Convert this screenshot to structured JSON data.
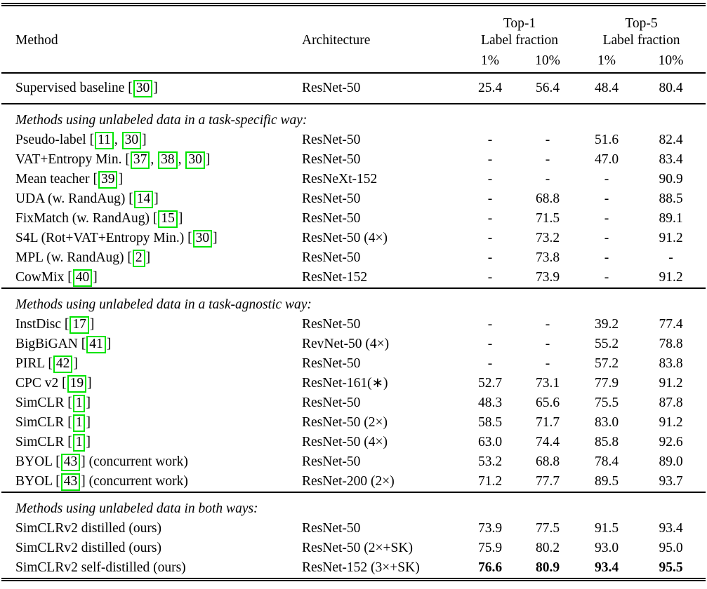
{
  "colors": {
    "citation_box_border": "#00E400",
    "text": "#000000",
    "background": "#FFFFFF"
  },
  "table": {
    "header": {
      "method": "Method",
      "architecture": "Architecture",
      "top1": "Top-1",
      "top5": "Top-5",
      "label_fraction": "Label fraction",
      "pct1": "1%",
      "pct10": "10%"
    },
    "sections": [
      {
        "title": null,
        "rows": [
          {
            "method": "Supervised baseline",
            "citations": [
              "30"
            ],
            "suffix": "",
            "architecture": "ResNet-50",
            "values": [
              "25.4",
              "56.4",
              "48.4",
              "80.4"
            ],
            "bold": false
          }
        ]
      },
      {
        "title": "Methods using unlabeled data in a task-specific way:",
        "rows": [
          {
            "method": "Pseudo-label",
            "citations": [
              "11",
              "30"
            ],
            "suffix": "",
            "architecture": "ResNet-50",
            "values": [
              "-",
              "-",
              "51.6",
              "82.4"
            ],
            "bold": false
          },
          {
            "method": "VAT+Entropy Min.",
            "citations": [
              "37",
              "38",
              "30"
            ],
            "suffix": "",
            "architecture": "ResNet-50",
            "values": [
              "-",
              "-",
              "47.0",
              "83.4"
            ],
            "bold": false
          },
          {
            "method": "Mean teacher",
            "citations": [
              "39"
            ],
            "suffix": "",
            "architecture": "ResNeXt-152",
            "values": [
              "-",
              "-",
              "-",
              "90.9"
            ],
            "bold": false
          },
          {
            "method": "UDA (w. RandAug)",
            "citations": [
              "14"
            ],
            "suffix": "",
            "architecture": "ResNet-50",
            "values": [
              "-",
              "68.8",
              "-",
              "88.5"
            ],
            "bold": false
          },
          {
            "method": "FixMatch (w. RandAug)",
            "citations": [
              "15"
            ],
            "suffix": "",
            "architecture": "ResNet-50",
            "values": [
              "-",
              "71.5",
              "-",
              "89.1"
            ],
            "bold": false
          },
          {
            "method": "S4L (Rot+VAT+Entropy Min.)",
            "citations": [
              "30"
            ],
            "suffix": "",
            "architecture": "ResNet-50 (4×)",
            "values": [
              "-",
              "73.2",
              "-",
              "91.2"
            ],
            "bold": false
          },
          {
            "method": "MPL (w. RandAug)",
            "citations": [
              "2"
            ],
            "suffix": "",
            "architecture": "ResNet-50",
            "values": [
              "-",
              "73.8",
              "-",
              "-"
            ],
            "bold": false
          },
          {
            "method": "CowMix",
            "citations": [
              "40"
            ],
            "suffix": "",
            "architecture": "ResNet-152",
            "values": [
              "-",
              "73.9",
              "-",
              "91.2"
            ],
            "bold": false
          }
        ]
      },
      {
        "title": "Methods using unlabeled data in a task-agnostic way:",
        "rows": [
          {
            "method": "InstDisc",
            "citations": [
              "17"
            ],
            "suffix": "",
            "architecture": "ResNet-50",
            "values": [
              "-",
              "-",
              "39.2",
              "77.4"
            ],
            "bold": false
          },
          {
            "method": "BigBiGAN",
            "citations": [
              "41"
            ],
            "suffix": "",
            "architecture": "RevNet-50 (4×)",
            "values": [
              "-",
              "-",
              "55.2",
              "78.8"
            ],
            "bold": false
          },
          {
            "method": "PIRL",
            "citations": [
              "42"
            ],
            "suffix": "",
            "architecture": "ResNet-50",
            "values": [
              "-",
              "-",
              "57.2",
              "83.8"
            ],
            "bold": false
          },
          {
            "method": "CPC v2",
            "citations": [
              "19"
            ],
            "suffix": "",
            "architecture": "ResNet-161(∗)",
            "values": [
              "52.7",
              "73.1",
              "77.9",
              "91.2"
            ],
            "bold": false
          },
          {
            "method": "SimCLR",
            "citations": [
              "1"
            ],
            "suffix": "",
            "architecture": "ResNet-50",
            "values": [
              "48.3",
              "65.6",
              "75.5",
              "87.8"
            ],
            "bold": false
          },
          {
            "method": "SimCLR",
            "citations": [
              "1"
            ],
            "suffix": "",
            "architecture": "ResNet-50 (2×)",
            "values": [
              "58.5",
              "71.7",
              "83.0",
              "91.2"
            ],
            "bold": false
          },
          {
            "method": "SimCLR",
            "citations": [
              "1"
            ],
            "suffix": "",
            "architecture": "ResNet-50 (4×)",
            "values": [
              "63.0",
              "74.4",
              "85.8",
              "92.6"
            ],
            "bold": false
          },
          {
            "method": "BYOL",
            "citations": [
              "43"
            ],
            "suffix": "(concurrent work)",
            "architecture": "ResNet-50",
            "values": [
              "53.2",
              "68.8",
              "78.4",
              "89.0"
            ],
            "bold": false
          },
          {
            "method": "BYOL",
            "citations": [
              "43"
            ],
            "suffix": "(concurrent work)",
            "architecture": "ResNet-200 (2×)",
            "values": [
              "71.2",
              "77.7",
              "89.5",
              "93.7"
            ],
            "bold": false
          }
        ]
      },
      {
        "title": "Methods using unlabeled data in both ways:",
        "rows": [
          {
            "method": "SimCLRv2 distilled (ours)",
            "citations": [],
            "suffix": "",
            "architecture": "ResNet-50",
            "values": [
              "73.9",
              "77.5",
              "91.5",
              "93.4"
            ],
            "bold": false
          },
          {
            "method": "SimCLRv2 distilled (ours)",
            "citations": [],
            "suffix": "",
            "architecture": "ResNet-50 (2×+SK)",
            "values": [
              "75.9",
              "80.2",
              "93.0",
              "95.0"
            ],
            "bold": false
          },
          {
            "method": "SimCLRv2 self-distilled (ours)",
            "citations": [],
            "suffix": "",
            "architecture": "ResNet-152 (3×+SK)",
            "values": [
              "76.6",
              "80.9",
              "93.4",
              "95.5"
            ],
            "bold": true
          }
        ]
      }
    ]
  }
}
